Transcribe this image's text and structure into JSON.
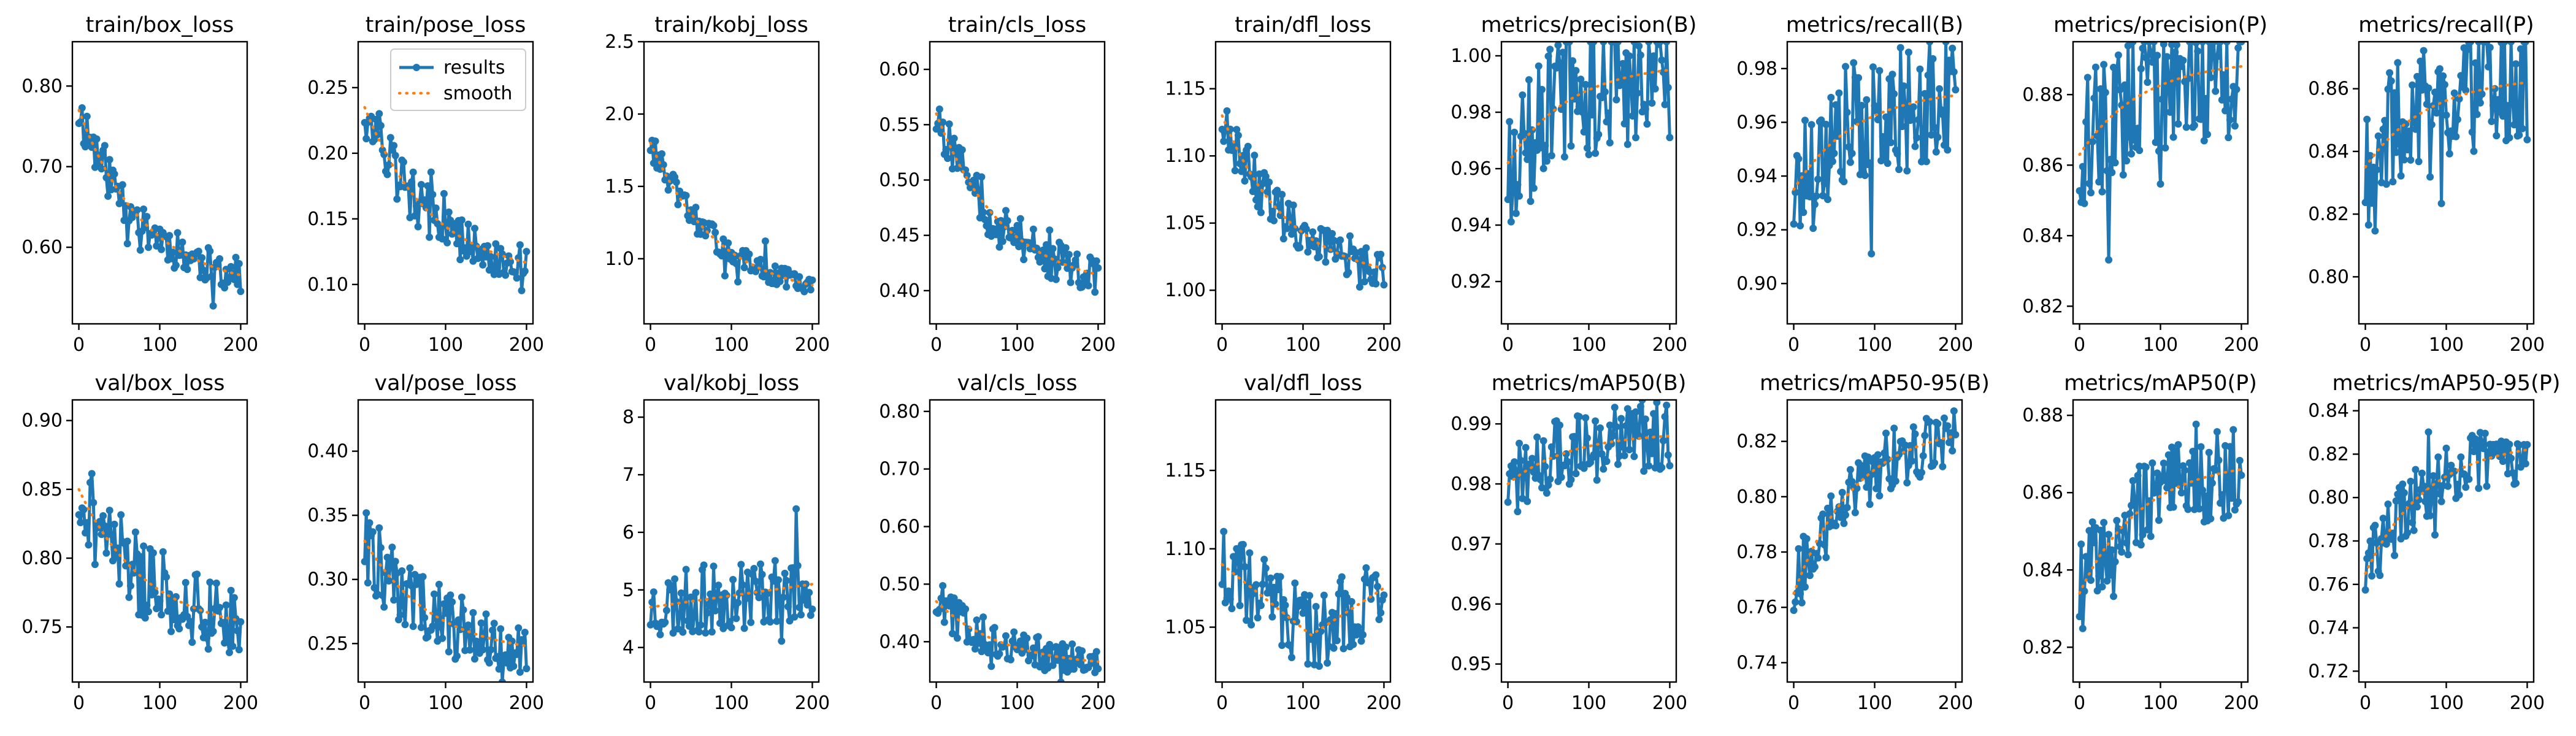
{
  "colors": {
    "results": "#1f77b4",
    "smooth": "#ff7f0e"
  },
  "legend": {
    "results_label": "results",
    "smooth_label": "smooth",
    "placement": "upper-right",
    "panel": 1
  },
  "chart_data": [
    {
      "type": "line",
      "title": "train/box_loss",
      "xlim": [
        -8,
        208
      ],
      "ylim": [
        0.505,
        0.855
      ],
      "xticks": [
        0,
        100,
        200
      ],
      "yticks": [
        0.6,
        0.7,
        0.8
      ],
      "x_start": 0,
      "x_end": 200,
      "smooth_start": 0.77,
      "smooth_end": 0.545,
      "curve": "decay",
      "noise": 0.035,
      "seed": 11
    },
    {
      "type": "line",
      "title": "train/pose_loss",
      "xlim": [
        -8,
        208
      ],
      "ylim": [
        0.07,
        0.285
      ],
      "xticks": [
        0,
        100,
        200
      ],
      "yticks": [
        0.1,
        0.15,
        0.2,
        0.25
      ],
      "x_start": 0,
      "x_end": 200,
      "smooth_start": 0.235,
      "smooth_end": 0.105,
      "curve": "decay",
      "noise": 0.025,
      "seed": 12
    },
    {
      "type": "line",
      "title": "train/kobj_loss",
      "xlim": [
        -8,
        208
      ],
      "ylim": [
        0.55,
        2.5
      ],
      "xticks": [
        0,
        100,
        200
      ],
      "yticks": [
        1.0,
        1.5,
        2.0,
        2.5
      ],
      "x_start": 0,
      "x_end": 200,
      "smooth_start": 1.8,
      "smooth_end": 0.72,
      "curve": "decay",
      "noise": 0.11,
      "seed": 13
    },
    {
      "type": "line",
      "title": "train/cls_loss",
      "xlim": [
        -8,
        208
      ],
      "ylim": [
        0.37,
        0.625
      ],
      "xticks": [
        0,
        100,
        200
      ],
      "yticks": [
        0.4,
        0.45,
        0.5,
        0.55,
        0.6
      ],
      "x_start": 0,
      "x_end": 200,
      "smooth_start": 0.56,
      "smooth_end": 0.4,
      "curve": "decay",
      "noise": 0.03,
      "seed": 14
    },
    {
      "type": "line",
      "title": "train/dfl_loss",
      "xlim": [
        -8,
        208
      ],
      "ylim": [
        0.975,
        1.185
      ],
      "xticks": [
        0,
        100,
        200
      ],
      "yticks": [
        1.0,
        1.05,
        1.1,
        1.15
      ],
      "x_start": 0,
      "x_end": 200,
      "smooth_start": 1.13,
      "smooth_end": 1.005,
      "curve": "decay",
      "noise": 0.022,
      "seed": 15
    },
    {
      "type": "line",
      "title": "metrics/precision(B)",
      "xlim": [
        -8,
        208
      ],
      "ylim": [
        0.905,
        1.005
      ],
      "xticks": [
        0,
        100,
        200
      ],
      "yticks": [
        0.92,
        0.94,
        0.96,
        0.98,
        1.0
      ],
      "x_start": 0,
      "x_end": 200,
      "smooth_start": 0.962,
      "smooth_end": 0.995,
      "curve": "rise",
      "noise": 0.025,
      "seed": 16
    },
    {
      "type": "line",
      "title": "metrics/recall(B)",
      "xlim": [
        -8,
        208
      ],
      "ylim": [
        0.885,
        0.99
      ],
      "xticks": [
        0,
        100,
        200
      ],
      "yticks": [
        0.9,
        0.92,
        0.94,
        0.96,
        0.98
      ],
      "x_start": 0,
      "x_end": 200,
      "smooth_start": 0.935,
      "smooth_end": 0.97,
      "curve": "rise",
      "noise": 0.025,
      "seed": 17
    },
    {
      "type": "line",
      "title": "metrics/precision(P)",
      "xlim": [
        -8,
        208
      ],
      "ylim": [
        0.815,
        0.895
      ],
      "xticks": [
        0,
        100,
        200
      ],
      "yticks": [
        0.82,
        0.84,
        0.86,
        0.88
      ],
      "x_start": 0,
      "x_end": 200,
      "smooth_start": 0.863,
      "smooth_end": 0.888,
      "curve": "rise",
      "noise": 0.02,
      "seed": 18
    },
    {
      "type": "line",
      "title": "metrics/recall(P)",
      "xlim": [
        -8,
        208
      ],
      "ylim": [
        0.785,
        0.875
      ],
      "xticks": [
        0,
        100,
        200
      ],
      "yticks": [
        0.8,
        0.82,
        0.84,
        0.86
      ],
      "x_start": 0,
      "x_end": 200,
      "smooth_start": 0.835,
      "smooth_end": 0.862,
      "curve": "rise",
      "noise": 0.022,
      "seed": 19
    },
    {
      "type": "line",
      "title": "val/box_loss",
      "xlim": [
        -8,
        208
      ],
      "ylim": [
        0.71,
        0.915
      ],
      "xticks": [
        0,
        100,
        200
      ],
      "yticks": [
        0.75,
        0.8,
        0.85,
        0.9
      ],
      "x_start": 0,
      "x_end": 200,
      "smooth_start": 0.85,
      "smooth_end": 0.745,
      "curve": "decay",
      "noise": 0.04,
      "seed": 21
    },
    {
      "type": "line",
      "title": "val/pose_loss",
      "xlim": [
        -8,
        208
      ],
      "ylim": [
        0.22,
        0.44
      ],
      "xticks": [
        0,
        100,
        200
      ],
      "yticks": [
        0.25,
        0.3,
        0.35,
        0.4
      ],
      "x_start": 0,
      "x_end": 200,
      "smooth_start": 0.33,
      "smooth_end": 0.24,
      "curve": "decay",
      "noise": 0.035,
      "seed": 22
    },
    {
      "type": "line",
      "title": "val/kobj_loss",
      "xlim": [
        -8,
        208
      ],
      "ylim": [
        3.4,
        8.3
      ],
      "xticks": [
        0,
        100,
        200
      ],
      "yticks": [
        4,
        5,
        6,
        7,
        8
      ],
      "x_start": 0,
      "x_end": 200,
      "smooth_start": 4.7,
      "smooth_end": 5.1,
      "curve": "flat",
      "noise": 0.6,
      "seed": 23
    },
    {
      "type": "line",
      "title": "val/cls_loss",
      "xlim": [
        -8,
        208
      ],
      "ylim": [
        0.33,
        0.82
      ],
      "xticks": [
        0,
        100,
        200
      ],
      "yticks": [
        0.4,
        0.5,
        0.6,
        0.7,
        0.8
      ],
      "x_start": 0,
      "x_end": 200,
      "smooth_start": 0.47,
      "smooth_end": 0.355,
      "curve": "decay",
      "noise": 0.04,
      "seed": 24
    },
    {
      "type": "line",
      "title": "val/dfl_loss",
      "xlim": [
        -8,
        208
      ],
      "ylim": [
        1.015,
        1.195
      ],
      "xticks": [
        0,
        100,
        200
      ],
      "yticks": [
        1.05,
        1.1,
        1.15
      ],
      "x_start": 0,
      "x_end": 200,
      "smooth_start": 1.09,
      "smooth_end": 1.075,
      "curve": "dip",
      "noise": 0.025,
      "seed": 25
    },
    {
      "type": "line",
      "title": "metrics/mAP50(B)",
      "xlim": [
        -8,
        208
      ],
      "ylim": [
        0.947,
        0.994
      ],
      "xticks": [
        0,
        100,
        200
      ],
      "yticks": [
        0.95,
        0.96,
        0.97,
        0.98,
        0.99
      ],
      "x_start": 0,
      "x_end": 200,
      "smooth_start": 0.98,
      "smooth_end": 0.988,
      "curve": "rise",
      "noise": 0.006,
      "seed": 26
    },
    {
      "type": "line",
      "title": "metrics/mAP50-95(B)",
      "xlim": [
        -8,
        208
      ],
      "ylim": [
        0.733,
        0.835
      ],
      "xticks": [
        0,
        100,
        200
      ],
      "yticks": [
        0.74,
        0.76,
        0.78,
        0.8,
        0.82
      ],
      "x_start": 0,
      "x_end": 200,
      "smooth_start": 0.765,
      "smooth_end": 0.822,
      "curve": "rise",
      "noise": 0.012,
      "seed": 27
    },
    {
      "type": "line",
      "title": "metrics/mAP50(P)",
      "xlim": [
        -8,
        208
      ],
      "ylim": [
        0.811,
        0.884
      ],
      "xticks": [
        0,
        100,
        200
      ],
      "yticks": [
        0.82,
        0.84,
        0.86,
        0.88
      ],
      "x_start": 0,
      "x_end": 200,
      "smooth_start": 0.834,
      "smooth_end": 0.866,
      "curve": "rise",
      "noise": 0.012,
      "seed": 28
    },
    {
      "type": "line",
      "title": "metrics/mAP50-95(P)",
      "xlim": [
        -8,
        208
      ],
      "ylim": [
        0.715,
        0.845
      ],
      "xticks": [
        0,
        100,
        200
      ],
      "yticks": [
        0.72,
        0.74,
        0.76,
        0.78,
        0.8,
        0.82,
        0.84
      ],
      "x_start": 0,
      "x_end": 200,
      "smooth_start": 0.765,
      "smooth_end": 0.822,
      "curve": "rise",
      "noise": 0.015,
      "seed": 29
    }
  ]
}
